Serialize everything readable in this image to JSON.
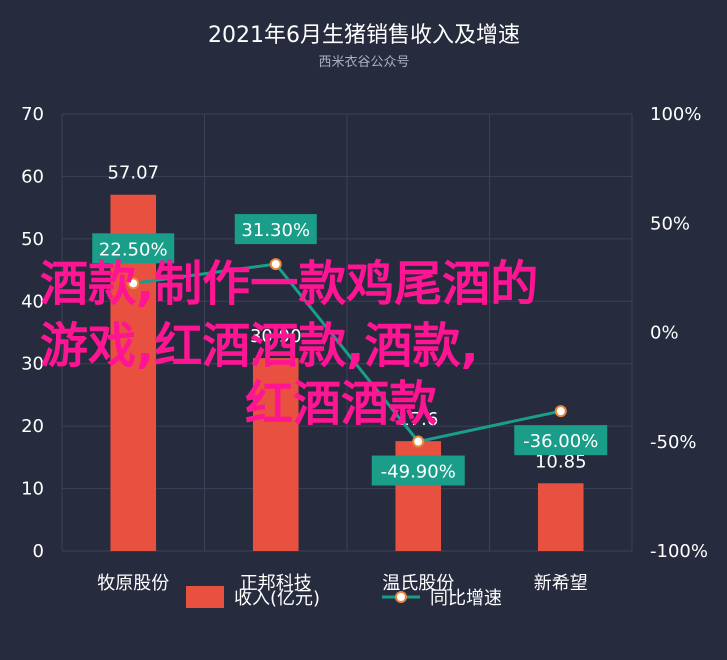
{
  "chart_data": {
    "type": "bar",
    "title": "2021年6月生猪销售收入及增速",
    "subtitle": "西米衣谷公众号",
    "categories": [
      "牧原股份",
      "正邦科技",
      "温氏股份",
      "新希望"
    ],
    "series": [
      {
        "name": "收入(亿元)",
        "kind": "bar",
        "axis": "left",
        "values": [
          57.07,
          30.9,
          17.6,
          10.85
        ],
        "labels": [
          "57.07",
          "30.90",
          "17.6",
          "10.85"
        ],
        "color": "#e8503f"
      },
      {
        "name": "同比增速",
        "kind": "line",
        "axis": "right",
        "values": [
          22.5,
          31.3,
          -49.9,
          -36.0
        ],
        "labels": [
          "22.50%",
          "31.30%",
          "-49.90%",
          "-36.00%"
        ],
        "color": "#1a9e8a"
      }
    ],
    "ylim": [
      0,
      70
    ],
    "yticks": [
      "0",
      "10",
      "20",
      "30",
      "40",
      "50",
      "60",
      "70"
    ],
    "y2lim": [
      -100,
      100
    ],
    "y2ticks": [
      "-100%",
      "-50%",
      "0%",
      "50%",
      "100%"
    ],
    "grid": true,
    "legend": "bottom"
  },
  "overlay_text": [
    "酒款,制作一款鸡尾酒的",
    "游戏,红酒酒款,酒款,",
    "红酒酒款"
  ],
  "colors": {
    "background": "#262b3d",
    "bar": "#e8503f",
    "line": "#1a9e8a",
    "overlay": "#ff1493"
  }
}
